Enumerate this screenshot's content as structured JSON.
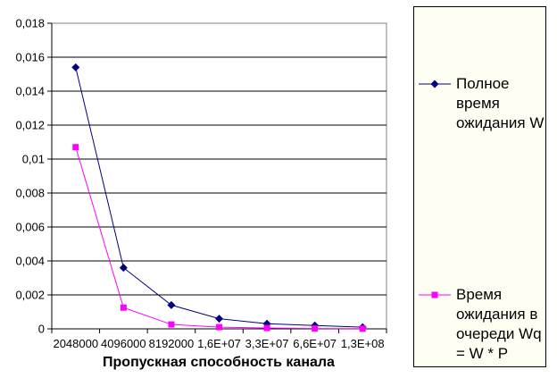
{
  "chart_data": {
    "type": "line",
    "title": "",
    "xlabel": "Пропускная способность канала",
    "ylabel": "",
    "categories": [
      "2048000",
      "4096000",
      "8192000",
      "1,6E+07",
      "3,3E+07",
      "6,6E+07",
      "1,3E+08"
    ],
    "y_tick_labels": [
      "0",
      "0,002",
      "0,004",
      "0,006",
      "0,008",
      "0,01",
      "0,012",
      "0,014",
      "0,016",
      "0,018"
    ],
    "ylim": [
      0,
      0.018
    ],
    "grid": true,
    "legend_position": "right",
    "series": [
      {
        "name": "Полное время ожидания W",
        "marker": "diamond",
        "color": "#000080",
        "values": [
          0.0154,
          0.0036,
          0.0014,
          0.0006,
          0.0003,
          0.0002,
          0.0001
        ]
      },
      {
        "name": "Время ожидания в очереди Wq = W * P",
        "marker": "square",
        "color": "#FF00FF",
        "values": [
          0.0107,
          0.00125,
          0.00026,
          0.0001,
          5e-05,
          2e-05,
          1e-05
        ]
      }
    ]
  },
  "legend": {
    "entries": [
      {
        "label": "Полное время ожидания W"
      },
      {
        "label": "Время ожидания в очереди Wq = W * P"
      }
    ]
  },
  "colors": {
    "series_w": "#000080",
    "series_wq": "#FF00FF",
    "plot_border": "#808080",
    "gridline": "#000000",
    "axis": "#000000",
    "legend_background": "#FFFEF2",
    "legend_border": "#000000",
    "text": "#000000",
    "page_background": "#FFFFFF"
  }
}
